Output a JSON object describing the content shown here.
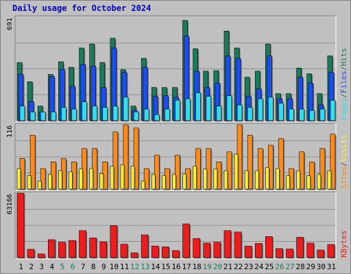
{
  "title": "Daily usage for October 2024",
  "colors": {
    "hits": "#1a7a5a",
    "files": "#1a4ef0",
    "pages": "#33ddee",
    "visits": "#ffee33",
    "sites": "#ff8c1a",
    "kbytes": "#ee1c1c",
    "weekend_label": "#1a7a5a",
    "weekday_label": "#000000",
    "title": "#0000c0"
  },
  "chart_data": [
    {
      "type": "bar",
      "panel": "top",
      "y_max_label": "691",
      "categories": [
        "1",
        "2",
        "3",
        "4",
        "5",
        "6",
        "7",
        "8",
        "9",
        "10",
        "11",
        "12",
        "13",
        "14",
        "15",
        "16",
        "17",
        "18",
        "19",
        "20",
        "21",
        "22",
        "23",
        "24",
        "25",
        "26",
        "27",
        "28",
        "29",
        "30",
        "31"
      ],
      "weekend_days": [
        "5",
        "6",
        "12",
        "13",
        "19",
        "20",
        "26",
        "27"
      ],
      "ylim": [
        0,
        691
      ],
      "legend": [
        "Pages",
        "/",
        "Files",
        "/",
        "Hits"
      ],
      "series": [
        {
          "name": "Hits",
          "values": [
            388,
            259,
            97,
            308,
            393,
            356,
            485,
            512,
            388,
            550,
            340,
            97,
            416,
            221,
            221,
            221,
            669,
            480,
            330,
            334,
            598,
            485,
            290,
            330,
            512,
            180,
            180,
            351,
            312,
            180,
            432
          ]
        },
        {
          "name": "Files",
          "values": [
            308,
            127,
            58,
            294,
            341,
            230,
            375,
            363,
            221,
            485,
            322,
            68,
            355,
            162,
            166,
            156,
            564,
            330,
            221,
            250,
            432,
            414,
            162,
            212,
            432,
            146,
            146,
            290,
            250,
            105,
            322
          ]
        },
        {
          "name": "Pages",
          "values": [
            97,
            58,
            58,
            58,
            88,
            77,
            125,
            97,
            88,
            97,
            156,
            58,
            77,
            40,
            77,
            136,
            146,
            186,
            162,
            97,
            166,
            105,
            88,
            146,
            156,
            116,
            77,
            77,
            68,
            77,
            136
          ]
        }
      ]
    },
    {
      "type": "bar",
      "panel": "middle",
      "y_max_label": "116",
      "categories": [
        "1",
        "2",
        "3",
        "4",
        "5",
        "6",
        "7",
        "8",
        "9",
        "10",
        "11",
        "12",
        "13",
        "14",
        "15",
        "16",
        "17",
        "18",
        "19",
        "20",
        "21",
        "22",
        "23",
        "24",
        "25",
        "26",
        "27",
        "28",
        "29",
        "30",
        "31"
      ],
      "ylim": [
        0,
        116
      ],
      "legend": [
        "Sites",
        "/",
        "Visits"
      ],
      "series": [
        {
          "name": "Sites",
          "values": [
            55,
            97,
            37,
            49,
            55,
            49,
            73,
            73,
            49,
            103,
            116,
            110,
            37,
            61,
            37,
            61,
            37,
            73,
            73,
            49,
            67,
            116,
            97,
            73,
            79,
            91,
            37,
            67,
            49,
            73,
            99
          ]
        },
        {
          "name": "Visits",
          "values": [
            37,
            24,
            14,
            26,
            33,
            31,
            36,
            37,
            28,
            41,
            44,
            41,
            14,
            26,
            24,
            26,
            27,
            41,
            36,
            36,
            33,
            63,
            33,
            33,
            39,
            37,
            24,
            33,
            24,
            26,
            33
          ]
        }
      ]
    },
    {
      "type": "bar",
      "panel": "bottom",
      "y_max_label": "63166",
      "categories": [
        "1",
        "2",
        "3",
        "4",
        "5",
        "6",
        "7",
        "8",
        "9",
        "10",
        "11",
        "12",
        "13",
        "14",
        "15",
        "16",
        "17",
        "18",
        "19",
        "20",
        "21",
        "22",
        "23",
        "24",
        "25",
        "26",
        "27",
        "28",
        "29",
        "30",
        "31"
      ],
      "ylim": [
        0,
        63166
      ],
      "legend": [
        "KBytes"
      ],
      "series": [
        {
          "name": "KBytes",
          "values": [
            63166,
            8100,
            3500,
            17500,
            15000,
            16800,
            26400,
            19300,
            15400,
            31300,
            13100,
            4700,
            22200,
            11300,
            10500,
            6800,
            33000,
            18700,
            14200,
            15000,
            26400,
            25000,
            11200,
            13800,
            20600,
            8800,
            8400,
            19900,
            14200,
            7400,
            12800
          ]
        }
      ]
    }
  ]
}
